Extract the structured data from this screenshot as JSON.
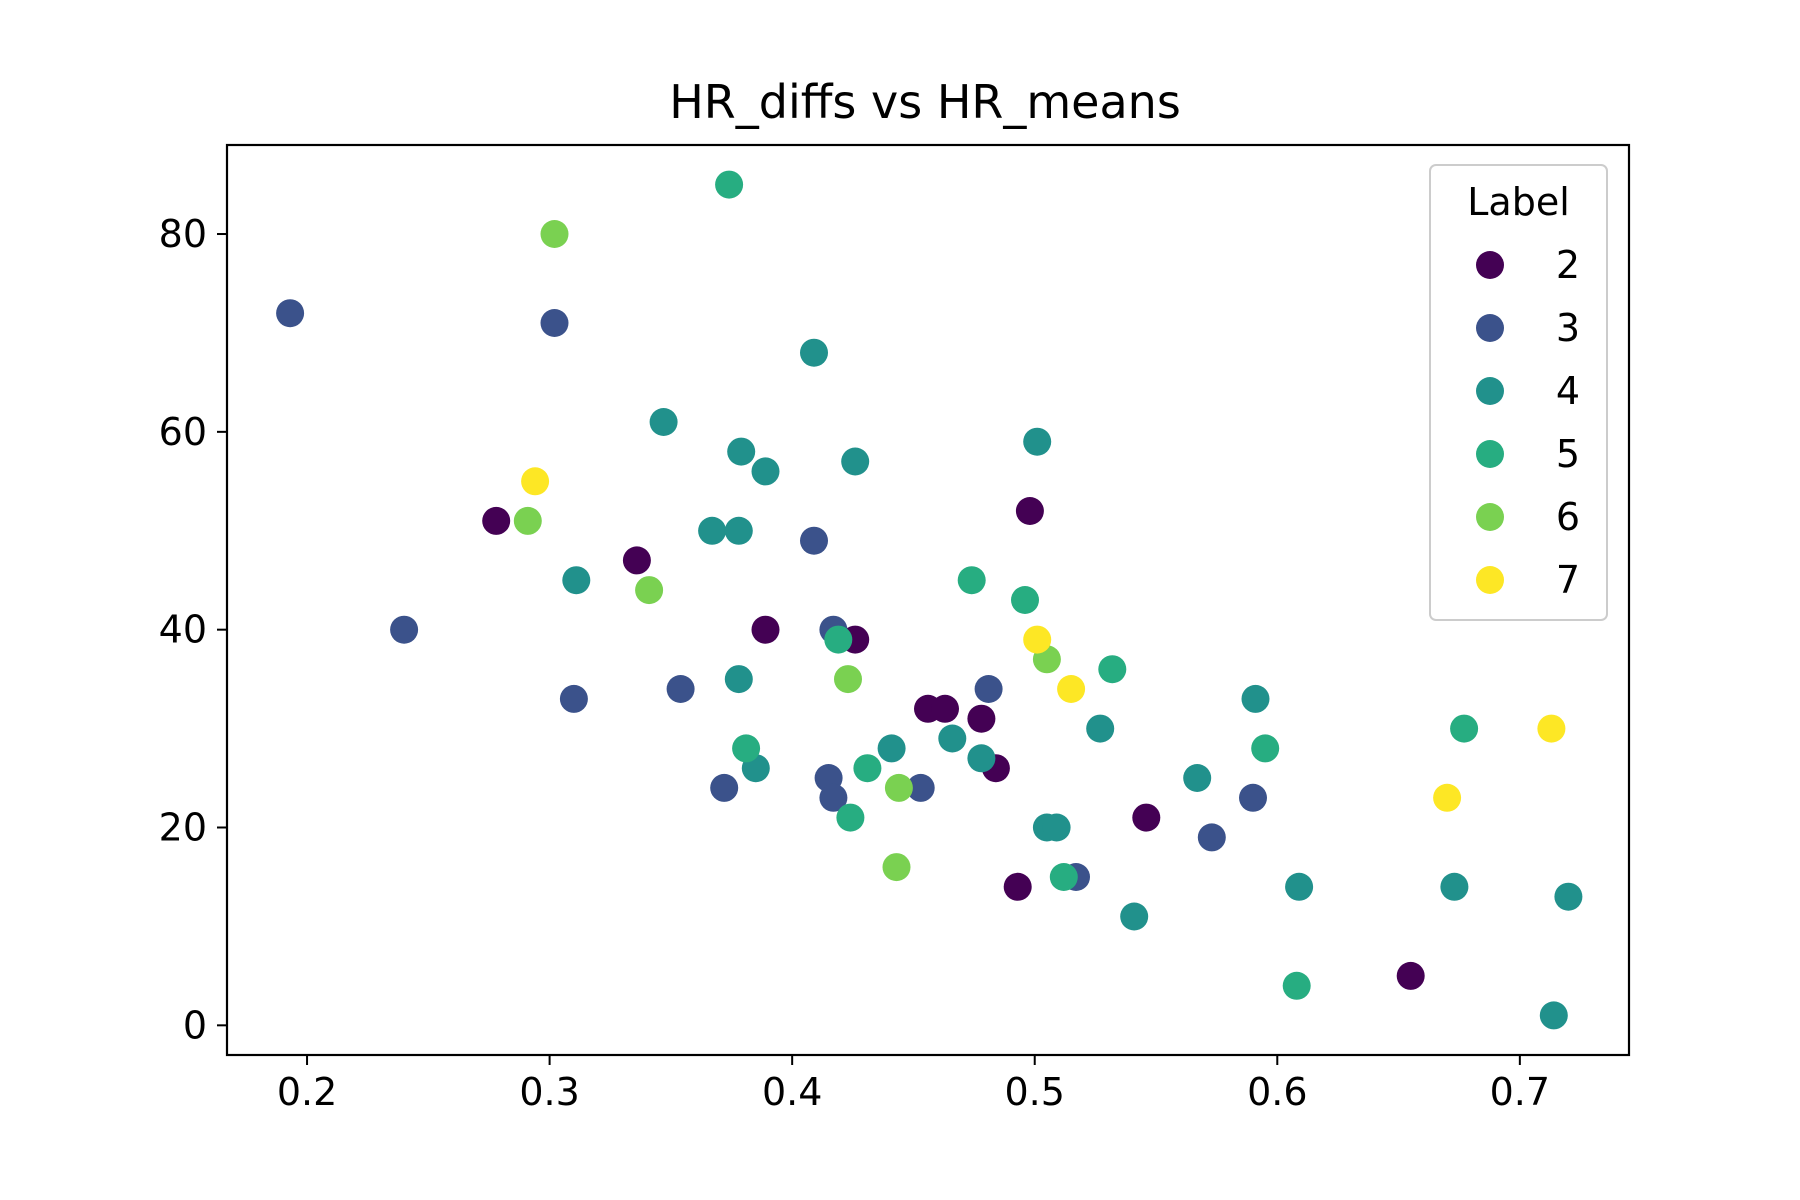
{
  "chart_data": {
    "type": "scatter",
    "title": "HR_diffs vs HR_means",
    "xlabel": "",
    "ylabel": "",
    "xlim": [
      0.167,
      0.745
    ],
    "ylim": [
      -3,
      89
    ],
    "x_ticks": [
      0.2,
      0.3,
      0.4,
      0.5,
      0.6,
      0.7
    ],
    "x_tick_labels": [
      "0.2",
      "0.3",
      "0.4",
      "0.5",
      "0.6",
      "0.7"
    ],
    "y_ticks": [
      0,
      20,
      40,
      60,
      80
    ],
    "y_tick_labels": [
      "0",
      "20",
      "40",
      "60",
      "80"
    ],
    "grid": false,
    "legend": {
      "title": "Label",
      "position": "top-right"
    },
    "series": [
      {
        "name": "2",
        "color": "#440154",
        "points": [
          [
            0.278,
            51
          ],
          [
            0.336,
            47
          ],
          [
            0.389,
            40
          ],
          [
            0.426,
            39
          ],
          [
            0.456,
            32
          ],
          [
            0.463,
            32
          ],
          [
            0.478,
            31
          ],
          [
            0.484,
            26
          ],
          [
            0.498,
            52
          ],
          [
            0.493,
            14
          ],
          [
            0.546,
            21
          ],
          [
            0.655,
            5
          ]
        ]
      },
      {
        "name": "3",
        "color": "#3b528b",
        "points": [
          [
            0.193,
            72
          ],
          [
            0.24,
            40
          ],
          [
            0.302,
            71
          ],
          [
            0.31,
            33
          ],
          [
            0.354,
            34
          ],
          [
            0.372,
            24
          ],
          [
            0.409,
            49
          ],
          [
            0.415,
            25
          ],
          [
            0.417,
            40
          ],
          [
            0.417,
            23
          ],
          [
            0.453,
            24
          ],
          [
            0.481,
            34
          ],
          [
            0.517,
            15
          ],
          [
            0.573,
            19
          ],
          [
            0.59,
            23
          ]
        ]
      },
      {
        "name": "4",
        "color": "#21918c",
        "points": [
          [
            0.311,
            45
          ],
          [
            0.347,
            61
          ],
          [
            0.367,
            50
          ],
          [
            0.378,
            50
          ],
          [
            0.378,
            35
          ],
          [
            0.379,
            58
          ],
          [
            0.385,
            26
          ],
          [
            0.389,
            56
          ],
          [
            0.409,
            68
          ],
          [
            0.426,
            57
          ],
          [
            0.441,
            28
          ],
          [
            0.466,
            29
          ],
          [
            0.478,
            27
          ],
          [
            0.501,
            59
          ],
          [
            0.505,
            20
          ],
          [
            0.509,
            20
          ],
          [
            0.527,
            30
          ],
          [
            0.541,
            11
          ],
          [
            0.567,
            25
          ],
          [
            0.591,
            33
          ],
          [
            0.609,
            14
          ],
          [
            0.673,
            14
          ],
          [
            0.714,
            1
          ],
          [
            0.72,
            13
          ]
        ]
      },
      {
        "name": "5",
        "color": "#27ad81",
        "points": [
          [
            0.374,
            85
          ],
          [
            0.381,
            28
          ],
          [
            0.419,
            39
          ],
          [
            0.424,
            21
          ],
          [
            0.431,
            26
          ],
          [
            0.474,
            45
          ],
          [
            0.496,
            43
          ],
          [
            0.512,
            15
          ],
          [
            0.532,
            36
          ],
          [
            0.595,
            28
          ],
          [
            0.608,
            4
          ],
          [
            0.677,
            30
          ]
        ]
      },
      {
        "name": "6",
        "color": "#7ad151",
        "points": [
          [
            0.291,
            51
          ],
          [
            0.302,
            80
          ],
          [
            0.341,
            44
          ],
          [
            0.423,
            35
          ],
          [
            0.443,
            16
          ],
          [
            0.444,
            24
          ],
          [
            0.505,
            37
          ]
        ]
      },
      {
        "name": "7",
        "color": "#fde725",
        "points": [
          [
            0.294,
            55
          ],
          [
            0.501,
            39
          ],
          [
            0.515,
            34
          ],
          [
            0.67,
            23
          ],
          [
            0.713,
            30
          ]
        ]
      }
    ]
  }
}
